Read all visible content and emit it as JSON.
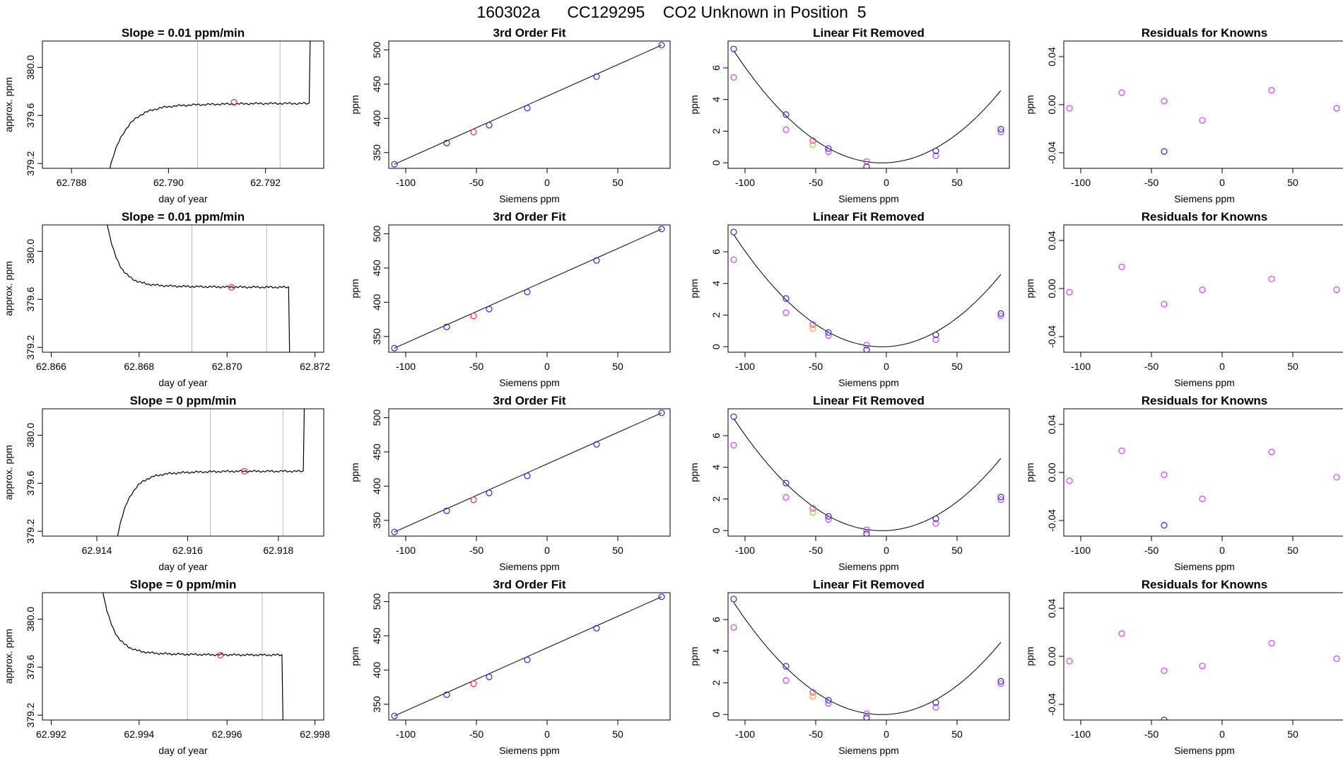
{
  "title": "160302a      CC129295    CO2 Unknown in Position  5",
  "colors": {
    "trace": "#000000",
    "marker_red": "#e0302c",
    "known_blue": "#2a2acc",
    "unknown_red": "#e0302c",
    "magenta": "#cc44ee",
    "orange": "#f5a623",
    "vline": "#b8b8b8"
  },
  "chart_data": [
    {
      "type": "line",
      "row": 1,
      "col": 1,
      "title": "Slope =  0.01  ppm/min",
      "xlabel": "day of year",
      "ylabel": "approx. ppm",
      "xlim": [
        62.7874,
        62.7932
      ],
      "ylim": [
        379.16,
        380.22
      ],
      "xticks": [
        62.788,
        62.79,
        62.792
      ],
      "xtick_labels": [
        "62.788",
        "62.790",
        "62.792"
      ],
      "yticks": [
        379.2,
        379.6,
        380.0
      ],
      "ytick_labels": [
        "379.2",
        "379.6",
        "380.0"
      ],
      "vlines": [
        62.7906,
        62.7923
      ],
      "marker": {
        "x": 62.79135,
        "y": 379.71
      },
      "trace": {
        "shape": "rise",
        "start": 62.7886,
        "settle": 62.7897,
        "base": 379.68,
        "end": 62.7929,
        "wobble": 0.006
      }
    },
    {
      "type": "line",
      "row": 1,
      "col": 2,
      "title": "3rd Order Fit",
      "xlabel": "Siemens ppm",
      "ylabel": "ppm",
      "xlim": [
        -112,
        87
      ],
      "ylim": [
        327,
        513
      ],
      "xticks": [
        -100,
        -50,
        0,
        50
      ],
      "xtick_labels": [
        "-100",
        "-50",
        "0",
        "50"
      ],
      "yticks": [
        350,
        400,
        450,
        500
      ],
      "ytick_labels": [
        "350",
        "400",
        "450",
        "500"
      ],
      "fit_line": [
        [
          -108,
          333
        ],
        [
          81,
          507
        ]
      ],
      "knowns": [
        [
          -108,
          333
        ],
        [
          -71,
          364
        ],
        [
          -41,
          390
        ],
        [
          -14,
          415
        ],
        [
          35,
          461
        ],
        [
          81,
          507
        ]
      ],
      "unknown": [
        -52,
        380
      ]
    },
    {
      "type": "scatter",
      "row": 1,
      "col": 3,
      "title": "Linear Fit Removed",
      "xlabel": "Siemens ppm",
      "ylabel": "ppm",
      "xlim": [
        -112,
        87
      ],
      "ylim": [
        -0.35,
        7.7
      ],
      "xticks": [
        -100,
        -50,
        0,
        50
      ],
      "xtick_labels": [
        "-100",
        "-50",
        "0",
        "50"
      ],
      "yticks": [
        0,
        2,
        4,
        6
      ],
      "ytick_labels": [
        "0",
        "2",
        "4",
        "6"
      ],
      "curve": {
        "a": 0.000646,
        "b": 0.0041,
        "c": 0.0
      },
      "knowns": [
        [
          -108,
          7.2
        ],
        [
          -71,
          3.05
        ],
        [
          -41,
          0.9
        ],
        [
          -14,
          -0.25
        ],
        [
          35,
          0.75
        ],
        [
          81,
          2.12
        ]
      ],
      "magenta": [
        [
          -108,
          5.4
        ],
        [
          -71,
          2.1
        ],
        [
          -52,
          1.4
        ],
        [
          -41,
          0.7
        ],
        [
          -14,
          0.08
        ],
        [
          35,
          0.45
        ],
        [
          81,
          1.95
        ]
      ],
      "orange": [
        [
          -52,
          1.15
        ]
      ]
    },
    {
      "type": "scatter",
      "row": 1,
      "col": 4,
      "title": "Residuals for Knowns",
      "xlabel": "Siemens ppm",
      "ylabel": "ppm",
      "xlim": [
        -112,
        87
      ],
      "ylim": [
        -0.053,
        0.053
      ],
      "xticks": [
        -100,
        -50,
        0,
        50
      ],
      "xtick_labels": [
        "-100",
        "-50",
        "0",
        "50"
      ],
      "yticks": [
        -0.04,
        0.0,
        0.04
      ],
      "ytick_labels": [
        "-0.04",
        "0.00",
        "0.04"
      ],
      "magenta": [
        [
          -108,
          -0.003
        ],
        [
          -71,
          0.01
        ],
        [
          -41,
          0.003
        ],
        [
          -14,
          -0.013
        ],
        [
          35,
          0.012
        ],
        [
          81,
          -0.003
        ]
      ],
      "knowns": [
        [
          -41,
          -0.039
        ]
      ]
    },
    {
      "type": "line",
      "row": 2,
      "col": 1,
      "title": "Slope =  0.01  ppm/min",
      "xlabel": "day of year",
      "ylabel": "approx. ppm",
      "xlim": [
        62.8658,
        62.8722
      ],
      "ylim": [
        379.16,
        380.22
      ],
      "xticks": [
        62.866,
        62.868,
        62.87,
        62.872
      ],
      "xtick_labels": [
        "62.866",
        "62.868",
        "62.870",
        "62.872"
      ],
      "yticks": [
        379.2,
        379.6,
        380.0
      ],
      "ytick_labels": [
        "379.2",
        "379.6",
        "380.0"
      ],
      "vlines": [
        62.8692,
        62.8709
      ],
      "marker": {
        "x": 62.8701,
        "y": 379.7
      },
      "trace": {
        "shape": "fall",
        "start": 62.8671,
        "settle": 62.8679,
        "base": 379.7,
        "end": 62.8714,
        "wobble": 0.006
      }
    },
    {
      "type": "line",
      "row": 2,
      "col": 2,
      "title": "3rd Order Fit",
      "xlabel": "Siemens ppm",
      "ylabel": "ppm",
      "xlim": [
        -112,
        87
      ],
      "ylim": [
        327,
        513
      ],
      "xticks": [
        -100,
        -50,
        0,
        50
      ],
      "xtick_labels": [
        "-100",
        "-50",
        "0",
        "50"
      ],
      "yticks": [
        350,
        400,
        450,
        500
      ],
      "ytick_labels": [
        "350",
        "400",
        "450",
        "500"
      ],
      "fit_line": [
        [
          -108,
          333
        ],
        [
          81,
          507
        ]
      ],
      "knowns": [
        [
          -108,
          333
        ],
        [
          -71,
          364
        ],
        [
          -41,
          390
        ],
        [
          -14,
          415
        ],
        [
          35,
          461
        ],
        [
          81,
          507
        ]
      ],
      "unknown": [
        -52,
        380
      ]
    },
    {
      "type": "scatter",
      "row": 2,
      "col": 3,
      "title": "Linear Fit Removed",
      "xlabel": "Siemens ppm",
      "ylabel": "ppm",
      "xlim": [
        -112,
        87
      ],
      "ylim": [
        -0.35,
        7.7
      ],
      "xticks": [
        -100,
        -50,
        0,
        50
      ],
      "xtick_labels": [
        "-100",
        "-50",
        "0",
        "50"
      ],
      "yticks": [
        0,
        2,
        4,
        6
      ],
      "ytick_labels": [
        "0",
        "2",
        "4",
        "6"
      ],
      "curve": {
        "a": 0.000646,
        "b": 0.0041,
        "c": 0.0
      },
      "knowns": [
        [
          -108,
          7.25
        ],
        [
          -71,
          3.05
        ],
        [
          -41,
          0.9
        ],
        [
          -14,
          -0.2
        ],
        [
          35,
          0.75
        ],
        [
          81,
          2.1
        ]
      ],
      "magenta": [
        [
          -108,
          5.5
        ],
        [
          -71,
          2.15
        ],
        [
          -52,
          1.4
        ],
        [
          -41,
          0.7
        ],
        [
          -14,
          0.1
        ],
        [
          35,
          0.45
        ],
        [
          81,
          1.95
        ]
      ],
      "orange": [
        [
          -52,
          1.15
        ]
      ]
    },
    {
      "type": "scatter",
      "row": 2,
      "col": 4,
      "title": "Residuals for Knowns",
      "xlabel": "Siemens ppm",
      "ylabel": "ppm",
      "xlim": [
        -112,
        87
      ],
      "ylim": [
        -0.053,
        0.053
      ],
      "xticks": [
        -100,
        -50,
        0,
        50
      ],
      "xtick_labels": [
        "-100",
        "-50",
        "0",
        "50"
      ],
      "yticks": [
        -0.04,
        0.0,
        0.04
      ],
      "ytick_labels": [
        "-0.04",
        "0.00",
        "0.04"
      ],
      "magenta": [
        [
          -108,
          -0.003
        ],
        [
          -71,
          0.018
        ],
        [
          -41,
          -0.013
        ],
        [
          -14,
          -0.001
        ],
        [
          35,
          0.008
        ],
        [
          81,
          -0.001
        ]
      ],
      "knowns": []
    },
    {
      "type": "line",
      "row": 3,
      "col": 1,
      "title": "Slope =  0  ppm/min",
      "xlabel": "day of year",
      "ylabel": "approx. ppm",
      "xlim": [
        62.9128,
        62.919
      ],
      "ylim": [
        379.16,
        380.22
      ],
      "xticks": [
        62.914,
        62.916,
        62.918
      ],
      "xtick_labels": [
        "62.914",
        "62.916",
        "62.918"
      ],
      "yticks": [
        379.2,
        379.6,
        380.0
      ],
      "ytick_labels": [
        "379.2",
        "379.6",
        "380.0"
      ],
      "vlines": [
        62.9165,
        62.9181
      ],
      "marker": {
        "x": 62.91725,
        "y": 379.7
      },
      "trace": {
        "shape": "rise",
        "start": 62.9143,
        "settle": 62.9152,
        "base": 379.68,
        "end": 62.91855,
        "wobble": 0.006
      }
    },
    {
      "type": "line",
      "row": 3,
      "col": 2,
      "title": "3rd Order Fit",
      "xlabel": "Siemens ppm",
      "ylabel": "ppm",
      "xlim": [
        -112,
        87
      ],
      "ylim": [
        327,
        513
      ],
      "xticks": [
        -100,
        -50,
        0,
        50
      ],
      "xtick_labels": [
        "-100",
        "-50",
        "0",
        "50"
      ],
      "yticks": [
        350,
        400,
        450,
        500
      ],
      "ytick_labels": [
        "350",
        "400",
        "450",
        "500"
      ],
      "fit_line": [
        [
          -108,
          333
        ],
        [
          81,
          507
        ]
      ],
      "knowns": [
        [
          -108,
          333
        ],
        [
          -71,
          364
        ],
        [
          -41,
          390
        ],
        [
          -14,
          415
        ],
        [
          35,
          461
        ],
        [
          81,
          507
        ]
      ],
      "unknown": [
        -52,
        380
      ]
    },
    {
      "type": "scatter",
      "row": 3,
      "col": 3,
      "title": "Linear Fit Removed",
      "xlabel": "Siemens ppm",
      "ylabel": "ppm",
      "xlim": [
        -112,
        87
      ],
      "ylim": [
        -0.35,
        7.7
      ],
      "xticks": [
        -100,
        -50,
        0,
        50
      ],
      "xtick_labels": [
        "-100",
        "-50",
        "0",
        "50"
      ],
      "yticks": [
        0,
        2,
        4,
        6
      ],
      "ytick_labels": [
        "0",
        "2",
        "4",
        "6"
      ],
      "curve": {
        "a": 0.000646,
        "b": 0.0041,
        "c": 0.0
      },
      "knowns": [
        [
          -108,
          7.2
        ],
        [
          -71,
          3.0
        ],
        [
          -41,
          0.9
        ],
        [
          -14,
          -0.2
        ],
        [
          35,
          0.75
        ],
        [
          81,
          2.12
        ]
      ],
      "magenta": [
        [
          -108,
          5.4
        ],
        [
          -71,
          2.1
        ],
        [
          -52,
          1.4
        ],
        [
          -41,
          0.7
        ],
        [
          -14,
          0.05
        ],
        [
          35,
          0.45
        ],
        [
          81,
          1.95
        ]
      ],
      "orange": [
        [
          -52,
          1.15
        ]
      ]
    },
    {
      "type": "scatter",
      "row": 3,
      "col": 4,
      "title": "Residuals for Knowns",
      "xlabel": "Siemens ppm",
      "ylabel": "ppm",
      "xlim": [
        -112,
        87
      ],
      "ylim": [
        -0.053,
        0.053
      ],
      "xticks": [
        -100,
        -50,
        0,
        50
      ],
      "xtick_labels": [
        "-100",
        "-50",
        "0",
        "50"
      ],
      "yticks": [
        -0.04,
        0.0,
        0.04
      ],
      "ytick_labels": [
        "-0.04",
        "0.00",
        "0.04"
      ],
      "magenta": [
        [
          -108,
          -0.007
        ],
        [
          -71,
          0.018
        ],
        [
          -41,
          -0.002
        ],
        [
          -14,
          -0.022
        ],
        [
          35,
          0.017
        ],
        [
          81,
          -0.004
        ]
      ],
      "knowns": [
        [
          -41,
          -0.044
        ]
      ]
    },
    {
      "type": "line",
      "row": 4,
      "col": 1,
      "title": "Slope =  0  ppm/min",
      "xlabel": "day of year",
      "ylabel": "approx. ppm",
      "xlim": [
        62.9918,
        62.9982
      ],
      "ylim": [
        379.16,
        380.22
      ],
      "xticks": [
        62.992,
        62.994,
        62.996,
        62.998
      ],
      "xtick_labels": [
        "62.992",
        "62.994",
        "62.996",
        "62.998"
      ],
      "yticks": [
        379.2,
        379.6,
        380.0
      ],
      "ytick_labels": [
        "379.2",
        "379.6",
        "380.0"
      ],
      "vlines": [
        62.9951,
        62.9968
      ],
      "marker": {
        "x": 62.99585,
        "y": 379.7
      },
      "trace": {
        "shape": "fall",
        "start": 62.993,
        "settle": 62.9938,
        "base": 379.7,
        "end": 62.99725,
        "wobble": 0.006
      }
    },
    {
      "type": "line",
      "row": 4,
      "col": 2,
      "title": "3rd Order Fit",
      "xlabel": "Siemens ppm",
      "ylabel": "ppm",
      "xlim": [
        -112,
        87
      ],
      "ylim": [
        327,
        513
      ],
      "xticks": [
        -100,
        -50,
        0,
        50
      ],
      "xtick_labels": [
        "-100",
        "-50",
        "0",
        "50"
      ],
      "yticks": [
        350,
        400,
        450,
        500
      ],
      "ytick_labels": [
        "350",
        "400",
        "450",
        "500"
      ],
      "fit_line": [
        [
          -108,
          333
        ],
        [
          81,
          507
        ]
      ],
      "knowns": [
        [
          -108,
          333
        ],
        [
          -71,
          364
        ],
        [
          -41,
          390
        ],
        [
          -14,
          415
        ],
        [
          35,
          461
        ],
        [
          81,
          507
        ]
      ],
      "unknown": [
        -52,
        380
      ]
    },
    {
      "type": "scatter",
      "row": 4,
      "col": 3,
      "title": "Linear Fit Removed",
      "xlabel": "Siemens ppm",
      "ylabel": "ppm",
      "xlim": [
        -112,
        87
      ],
      "ylim": [
        -0.35,
        7.7
      ],
      "xticks": [
        -100,
        -50,
        0,
        50
      ],
      "xtick_labels": [
        "-100",
        "-50",
        "0",
        "50"
      ],
      "yticks": [
        0,
        2,
        4,
        6
      ],
      "ytick_labels": [
        "0",
        "2",
        "4",
        "6"
      ],
      "curve": {
        "a": 0.000646,
        "b": 0.0041,
        "c": 0.0
      },
      "knowns": [
        [
          -108,
          7.3
        ],
        [
          -71,
          3.05
        ],
        [
          -41,
          0.9
        ],
        [
          -14,
          -0.2
        ],
        [
          35,
          0.75
        ],
        [
          81,
          2.1
        ]
      ],
      "magenta": [
        [
          -108,
          5.5
        ],
        [
          -71,
          2.15
        ],
        [
          -52,
          1.4
        ],
        [
          -41,
          0.7
        ],
        [
          -14,
          0.05
        ],
        [
          35,
          0.45
        ],
        [
          81,
          1.95
        ]
      ],
      "orange": [
        [
          -52,
          1.15
        ]
      ]
    },
    {
      "type": "scatter",
      "row": 4,
      "col": 4,
      "title": "Residuals for Knowns",
      "xlabel": "Siemens ppm",
      "ylabel": "ppm",
      "xlim": [
        -112,
        87
      ],
      "ylim": [
        -0.053,
        0.053
      ],
      "xticks": [
        -100,
        -50,
        0,
        50
      ],
      "xtick_labels": [
        "-100",
        "-50",
        "0",
        "50"
      ],
      "yticks": [
        -0.04,
        0.0,
        0.04
      ],
      "ytick_labels": [
        "-0.04",
        "0.00",
        "0.04"
      ],
      "magenta": [
        [
          -108,
          -0.004
        ],
        [
          -71,
          0.019
        ],
        [
          -41,
          -0.012
        ],
        [
          -14,
          -0.008
        ],
        [
          35,
          0.011
        ],
        [
          81,
          -0.002
        ]
      ],
      "knowns": [
        [
          -41,
          -0.053
        ]
      ]
    }
  ]
}
